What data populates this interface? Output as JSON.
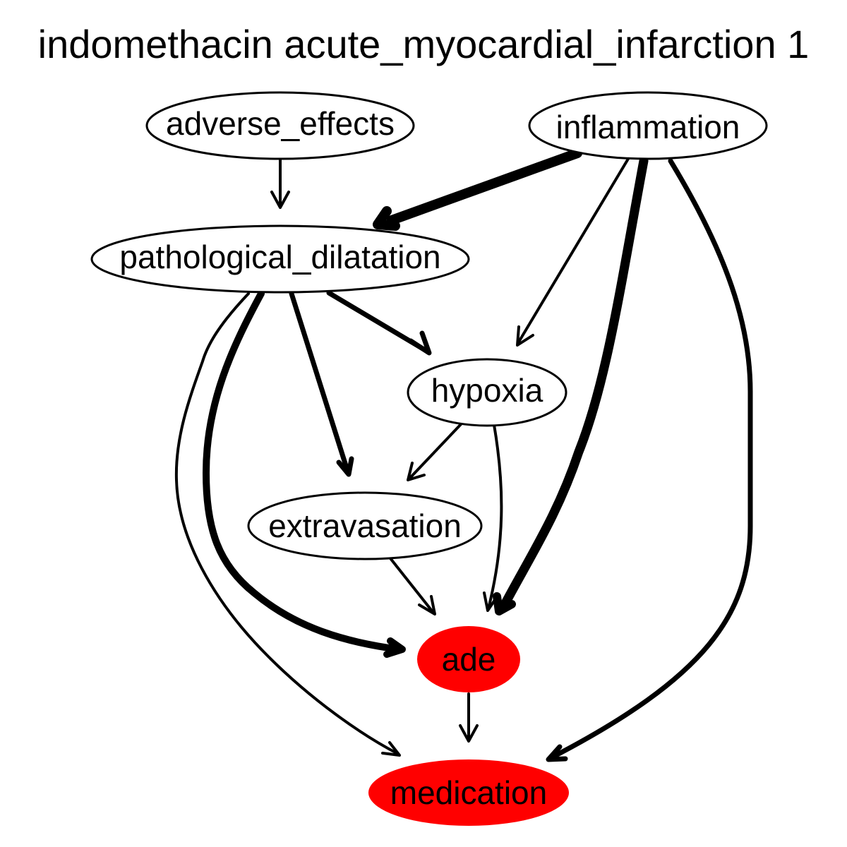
{
  "diagram": {
    "title": "indomethacin acute_myocardial_infarction 1",
    "nodes": [
      {
        "id": "adverse_effects",
        "label": "adverse_effects",
        "fill": "#ffffff"
      },
      {
        "id": "inflammation",
        "label": "inflammation",
        "fill": "#ffffff"
      },
      {
        "id": "pathological_dilatation",
        "label": "pathological_dilatation",
        "fill": "#ffffff"
      },
      {
        "id": "hypoxia",
        "label": "hypoxia",
        "fill": "#ffffff"
      },
      {
        "id": "extravasation",
        "label": "extravasation",
        "fill": "#ffffff"
      },
      {
        "id": "ade",
        "label": "ade",
        "fill": "#ff0000"
      },
      {
        "id": "medication",
        "label": "medication",
        "fill": "#ff0000"
      }
    ],
    "edges": [
      {
        "from": "adverse_effects",
        "to": "pathological_dilatation",
        "weight": "thin"
      },
      {
        "from": "inflammation",
        "to": "pathological_dilatation",
        "weight": "heavy"
      },
      {
        "from": "inflammation",
        "to": "hypoxia",
        "weight": "thin"
      },
      {
        "from": "inflammation",
        "to": "ade",
        "weight": "heavy"
      },
      {
        "from": "inflammation",
        "to": "medication",
        "weight": "medium"
      },
      {
        "from": "pathological_dilatation",
        "to": "hypoxia",
        "weight": "medium"
      },
      {
        "from": "pathological_dilatation",
        "to": "extravasation",
        "weight": "medium"
      },
      {
        "from": "pathological_dilatation",
        "to": "ade",
        "weight": "heavy"
      },
      {
        "from": "pathological_dilatation",
        "to": "medication",
        "weight": "thin"
      },
      {
        "from": "hypoxia",
        "to": "extravasation",
        "weight": "thin"
      },
      {
        "from": "hypoxia",
        "to": "ade",
        "weight": "thin"
      },
      {
        "from": "extravasation",
        "to": "ade",
        "weight": "thin"
      },
      {
        "from": "ade",
        "to": "medication",
        "weight": "thin"
      }
    ]
  }
}
